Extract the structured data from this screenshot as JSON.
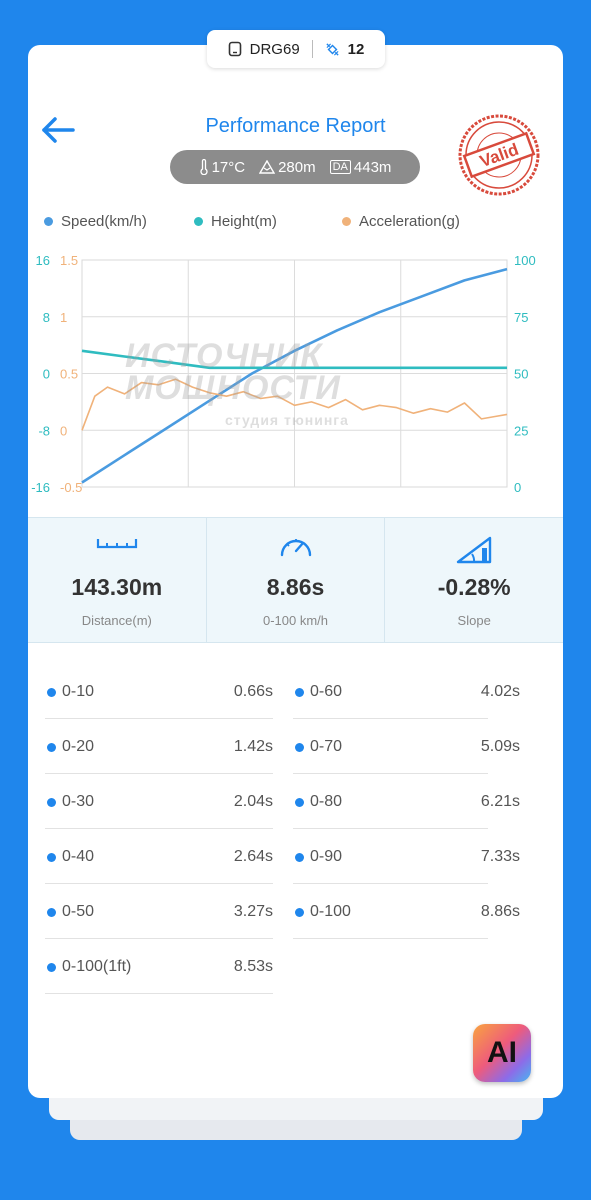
{
  "device": {
    "name": "DRG69",
    "count": "12",
    "device_icon": "phone-icon",
    "sat_icon": "satellite-icon"
  },
  "header": {
    "title": "Performance Report",
    "back_icon": "back-arrow-icon"
  },
  "conditions": {
    "temperature": "17°C",
    "altitude": "280m",
    "da_label": "DA",
    "density_altitude": "443m"
  },
  "stamp": {
    "text": "Valid",
    "color": "#d84a3c"
  },
  "watermark": {
    "line1": "ИСТОЧНИК",
    "line2": "МОЩНОСТИ",
    "line3": "студия тюнинга"
  },
  "chart_data": {
    "type": "line",
    "series": [
      {
        "name": "Speed(km/h)",
        "color": "#4a9be0",
        "axis": "right",
        "x": [
          0,
          0.1,
          0.2,
          0.3,
          0.4,
          0.5,
          0.6,
          0.7,
          0.8,
          0.9,
          1.0
        ],
        "values": [
          2,
          14,
          26,
          38,
          50,
          60,
          69,
          77,
          84,
          91,
          96
        ]
      },
      {
        "name": "Height(m)",
        "color": "#2fbcc0",
        "axis": "left",
        "x": [
          0,
          0.1,
          0.2,
          0.3,
          0.4,
          0.5,
          0.6,
          0.7,
          0.8,
          0.9,
          1.0
        ],
        "values": [
          0.4,
          0.3,
          0.2,
          0.1,
          0.1,
          0.1,
          0.1,
          0.1,
          0.1,
          0.1,
          0.1
        ]
      },
      {
        "name": "Acceleration(g)",
        "color": "#f0b27a",
        "axis": "left2",
        "x": [
          0,
          0.03,
          0.06,
          0.1,
          0.14,
          0.18,
          0.22,
          0.26,
          0.3,
          0.34,
          0.38,
          0.42,
          0.46,
          0.5,
          0.54,
          0.58,
          0.62,
          0.66,
          0.7,
          0.74,
          0.78,
          0.82,
          0.86,
          0.9,
          0.94,
          0.97,
          1.0
        ],
        "values": [
          0,
          0.3,
          0.38,
          0.32,
          0.42,
          0.4,
          0.45,
          0.38,
          0.33,
          0.3,
          0.34,
          0.28,
          0.3,
          0.22,
          0.25,
          0.2,
          0.27,
          0.18,
          0.22,
          0.2,
          0.15,
          0.19,
          0.16,
          0.24,
          0.1,
          0.12,
          0.14
        ]
      }
    ],
    "left_axis": {
      "ticks": [
        "16",
        "8",
        "0",
        "-8",
        "-16"
      ],
      "color": "#2fbcc0",
      "ylim": [
        -16,
        16
      ]
    },
    "left2_axis": {
      "ticks": [
        "1.5",
        "1",
        "0.5",
        "0",
        "-0.5"
      ],
      "color": "#f0b27a",
      "ylim": [
        -0.5,
        1.5
      ]
    },
    "right_axis": {
      "ticks": [
        "100",
        "75",
        "50",
        "25",
        "0"
      ],
      "color": "#2fbcc0",
      "ylim": [
        0,
        100
      ]
    },
    "grid": true,
    "legend": "top"
  },
  "stats": [
    {
      "value": "143.30m",
      "label": "Distance(m)",
      "icon": "ruler-icon"
    },
    {
      "value": "8.86s",
      "label": "0-100 km/h",
      "icon": "speedometer-icon"
    },
    {
      "value": "-0.28%",
      "label": "Slope",
      "icon": "slope-icon"
    }
  ],
  "splits_left": [
    {
      "label": "0-10",
      "value": "0.66s"
    },
    {
      "label": "0-20",
      "value": "1.42s"
    },
    {
      "label": "0-30",
      "value": "2.04s"
    },
    {
      "label": "0-40",
      "value": "2.64s"
    },
    {
      "label": "0-50",
      "value": "3.27s"
    },
    {
      "label": "0-100(1ft)",
      "value": "8.53s"
    }
  ],
  "splits_right": [
    {
      "label": "0-60",
      "value": "4.02s"
    },
    {
      "label": "0-70",
      "value": "5.09s"
    },
    {
      "label": "0-80",
      "value": "6.21s"
    },
    {
      "label": "0-90",
      "value": "7.33s"
    },
    {
      "label": "0-100",
      "value": "8.86s"
    }
  ],
  "ai_button": {
    "label": "AI",
    "icon": "ai-icon"
  }
}
